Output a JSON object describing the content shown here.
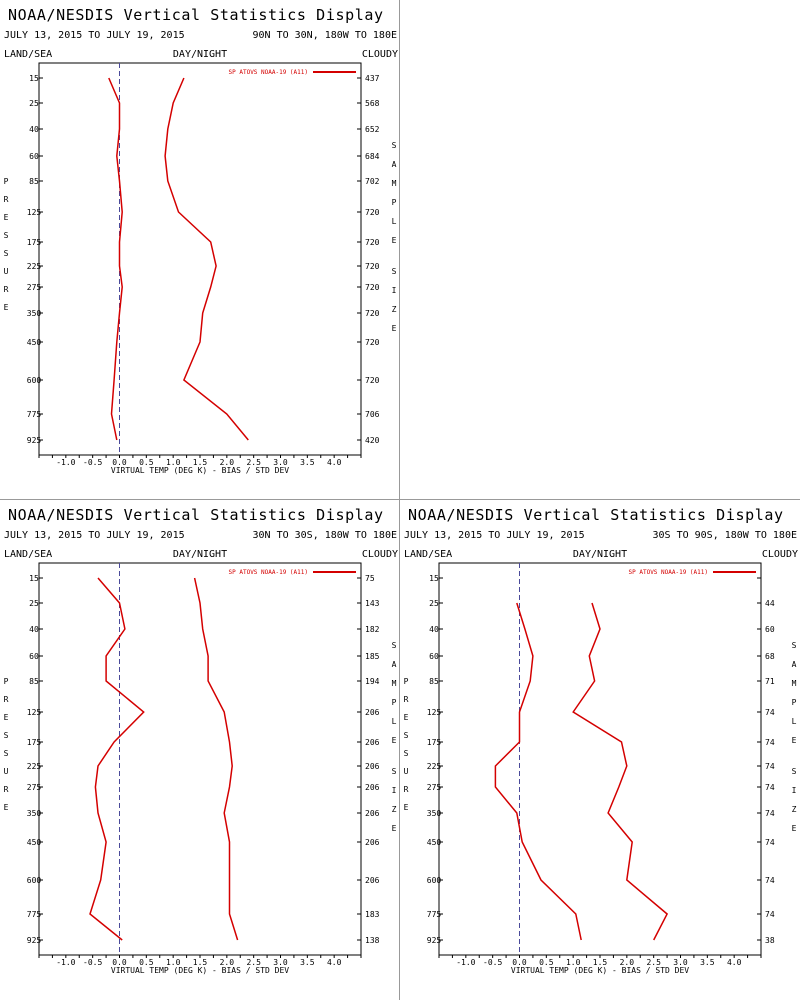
{
  "header_title": "NOAA/NESDIS Vertical Statistics Display",
  "labels": {
    "land_sea": "LAND/SEA",
    "day_night": "DAY/NIGHT",
    "cloudy": "CLOUDY",
    "xlabel": "VIRTUAL TEMP (DEG K) - BIAS / STD DEV",
    "ylabel": "PRESSURE",
    "right_label": "SAMPLE SIZE"
  },
  "colors": {
    "series": "#d40000",
    "zero_line": "#4a4a9a",
    "axes": "#000000"
  },
  "chart_data": [
    {
      "type": "line",
      "title": "NOAA/NESDIS Vertical Statistics Display",
      "date_range": "JULY 13, 2015 TO JULY 19, 2015",
      "region": "90N TO 30N, 180W TO 180E",
      "legend": "SP ATOVS NOAA-19 (A11)",
      "legend_position": "top-right",
      "xlim": [
        -1.5,
        4.5
      ],
      "xticks": [
        -1.0,
        -0.5,
        0.0,
        0.5,
        1.0,
        1.5,
        2.0,
        2.5,
        3.0,
        3.5,
        4.0
      ],
      "xtick_labels": [
        "-1.0",
        "-0.5",
        "0.0",
        "0.5",
        "1.0",
        "1.5",
        "2.0",
        "2.5",
        "3.0",
        "3.5",
        "4.0"
      ],
      "pressure_levels": [
        "15",
        "25",
        "40",
        "60",
        "85",
        "125",
        "175",
        "225",
        "275",
        "350",
        "450",
        "600",
        "775",
        "925"
      ],
      "sample_size": [
        "437",
        "568",
        "652",
        "684",
        "702",
        "720",
        "720",
        "720",
        "720",
        "720",
        "720",
        "720",
        "706",
        "420"
      ],
      "series": [
        {
          "values": [
            -0.2,
            0.0,
            0.0,
            -0.05,
            0.0,
            0.05,
            0.0,
            0.0,
            0.05,
            0.0,
            -0.05,
            -0.1,
            -0.15,
            -0.05
          ]
        },
        {
          "values": [
            1.2,
            1.0,
            0.9,
            0.85,
            0.9,
            1.1,
            1.7,
            1.8,
            1.7,
            1.55,
            1.5,
            1.2,
            2.0,
            2.4
          ]
        }
      ]
    },
    {
      "type": "line",
      "title": "NOAA/NESDIS Vertical Statistics Display",
      "date_range": "JULY 13, 2015 TO JULY 19, 2015",
      "region": "30N TO 30S, 180W TO 180E",
      "legend": "SP ATOVS NOAA-19 (A11)",
      "legend_position": "top-right",
      "xlim": [
        -1.5,
        4.5
      ],
      "xticks": [
        -1.0,
        -0.5,
        0.0,
        0.5,
        1.0,
        1.5,
        2.0,
        2.5,
        3.0,
        3.5,
        4.0
      ],
      "xtick_labels": [
        "-1.0",
        "-0.5",
        "0.0",
        "0.5",
        "1.0",
        "1.5",
        "2.0",
        "2.5",
        "3.0",
        "3.5",
        "4.0"
      ],
      "pressure_levels": [
        "15",
        "25",
        "40",
        "60",
        "85",
        "125",
        "175",
        "225",
        "275",
        "350",
        "450",
        "600",
        "775",
        "925"
      ],
      "sample_size": [
        "75",
        "143",
        "182",
        "185",
        "194",
        "206",
        "206",
        "206",
        "206",
        "206",
        "206",
        "206",
        "183",
        "138"
      ],
      "series": [
        {
          "values": [
            -0.4,
            0.0,
            0.1,
            -0.25,
            -0.25,
            0.45,
            -0.1,
            -0.4,
            -0.45,
            -0.4,
            -0.25,
            -0.35,
            -0.55,
            0.05
          ]
        },
        {
          "values": [
            1.4,
            1.5,
            1.55,
            1.65,
            1.65,
            1.95,
            2.05,
            2.1,
            2.05,
            1.95,
            2.05,
            2.05,
            2.05,
            2.2
          ]
        }
      ]
    },
    {
      "type": "line",
      "title": "NOAA/NESDIS Vertical Statistics Display",
      "date_range": "JULY 13, 2015 TO JULY 19, 2015",
      "region": "30S TO 90S, 180W TO 180E",
      "legend": "SP ATOVS NOAA-19 (A11)",
      "legend_position": "top-right",
      "xlim": [
        -1.5,
        4.5
      ],
      "xticks": [
        -1.0,
        -0.5,
        0.0,
        0.5,
        1.0,
        1.5,
        2.0,
        2.5,
        3.0,
        3.5,
        4.0
      ],
      "xtick_labels": [
        "-1.0",
        "-0.5",
        "0.0",
        "0.5",
        "1.0",
        "1.5",
        "2.0",
        "2.5",
        "3.0",
        "3.5",
        "4.0"
      ],
      "pressure_levels": [
        "15",
        "25",
        "40",
        "60",
        "85",
        "125",
        "175",
        "225",
        "275",
        "350",
        "450",
        "600",
        "775",
        "925"
      ],
      "sample_size": [
        "",
        "44",
        "60",
        "68",
        "71",
        "74",
        "74",
        "74",
        "74",
        "74",
        "74",
        "74",
        "74",
        "38"
      ],
      "series": [
        {
          "values": [
            null,
            -0.05,
            0.1,
            0.25,
            0.2,
            0.0,
            0.0,
            -0.45,
            -0.45,
            -0.05,
            0.05,
            0.4,
            1.05,
            1.15
          ]
        },
        {
          "values": [
            null,
            1.35,
            1.5,
            1.3,
            1.4,
            1.0,
            1.9,
            2.0,
            1.85,
            1.65,
            2.1,
            2.0,
            2.75,
            2.5
          ]
        }
      ]
    }
  ]
}
